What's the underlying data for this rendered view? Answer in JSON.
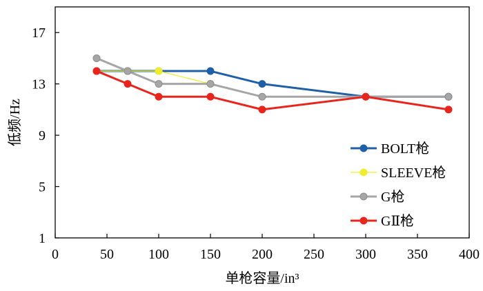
{
  "chart_data": {
    "type": "line",
    "xlabel": "单枪容量/in³",
    "ylabel": "低频/Hz",
    "xlim": [
      0,
      400
    ],
    "ylim": [
      1,
      19
    ],
    "xticks": [
      0,
      50,
      100,
      150,
      200,
      250,
      300,
      350,
      400
    ],
    "yticks": [
      1,
      5,
      9,
      13,
      17
    ],
    "grid": false,
    "legend_position": "right",
    "series": [
      {
        "name": "BOLT枪",
        "color": "#1f5fa8",
        "x": [
          40,
          70,
          100,
          150,
          200,
          300,
          380
        ],
        "y": [
          14,
          14,
          14,
          14,
          13,
          12,
          12
        ]
      },
      {
        "name": "SLEEVE枪",
        "color": "#eeee30",
        "x": [
          40,
          70,
          100,
          150
        ],
        "y": [
          14,
          14,
          14,
          13
        ]
      },
      {
        "name": "G枪",
        "color": "#a6a6a6",
        "x": [
          40,
          70,
          100,
          150,
          200,
          300,
          380
        ],
        "y": [
          15,
          14,
          13,
          13,
          12,
          12,
          12
        ]
      },
      {
        "name": "GⅡ枪",
        "color": "#e8251d",
        "x": [
          40,
          70,
          100,
          150,
          200,
          300,
          380
        ],
        "y": [
          14,
          13,
          12,
          12,
          11,
          12,
          11
        ]
      }
    ]
  }
}
